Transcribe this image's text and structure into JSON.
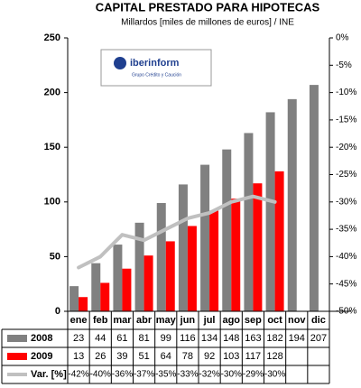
{
  "chart_data": {
    "type": "bar",
    "title": "CAPITAL PRESTADO PARA HIPOTECAS",
    "subtitle": "Millardos [miles de millones de euros] / INE",
    "logo": {
      "name": "iberinform",
      "tagline": "Grupo Crédito y Caución"
    },
    "categories": [
      "ene",
      "feb",
      "mar",
      "abr",
      "may",
      "jun",
      "jul",
      "ago",
      "sep",
      "oct",
      "nov",
      "dic"
    ],
    "series": [
      {
        "name": "2008",
        "color": "#808080",
        "values": [
          23,
          44,
          61,
          81,
          99,
          116,
          134,
          148,
          163,
          182,
          194,
          207
        ]
      },
      {
        "name": "2009",
        "color": "#ff0000",
        "values": [
          13,
          26,
          39,
          51,
          64,
          78,
          92,
          103,
          117,
          128,
          null,
          null
        ]
      },
      {
        "name": "Var. [%]",
        "color": "#c0c0c0",
        "type": "line",
        "axis": "y2",
        "values": [
          -42,
          -40,
          -36,
          -37,
          -35,
          -33,
          -32,
          -30,
          -29,
          -30,
          null,
          null
        ],
        "value_labels": [
          "-42%",
          "-40%",
          "-36%",
          "-37%",
          "-35%",
          "-33%",
          "-32%",
          "-30%",
          "-29%",
          "-30%",
          null,
          null
        ]
      }
    ],
    "ylim": [
      0,
      250
    ],
    "yticks": [
      0,
      50,
      100,
      150,
      200,
      250
    ],
    "y2lim": [
      -50,
      0
    ],
    "y2ticks": [
      {
        "value": 0,
        "label": "0%"
      },
      {
        "value": -5,
        "label": "-5%"
      },
      {
        "value": -10,
        "label": "-10%"
      },
      {
        "value": -15,
        "label": "-15%"
      },
      {
        "value": -20,
        "label": "-20%"
      },
      {
        "value": -25,
        "label": "-25%"
      },
      {
        "value": -30,
        "label": "-30%"
      },
      {
        "value": -35,
        "label": "-35%"
      },
      {
        "value": -40,
        "label": "-40%"
      },
      {
        "value": -45,
        "label": "-45%"
      },
      {
        "value": -50,
        "label": "-50%"
      }
    ]
  }
}
